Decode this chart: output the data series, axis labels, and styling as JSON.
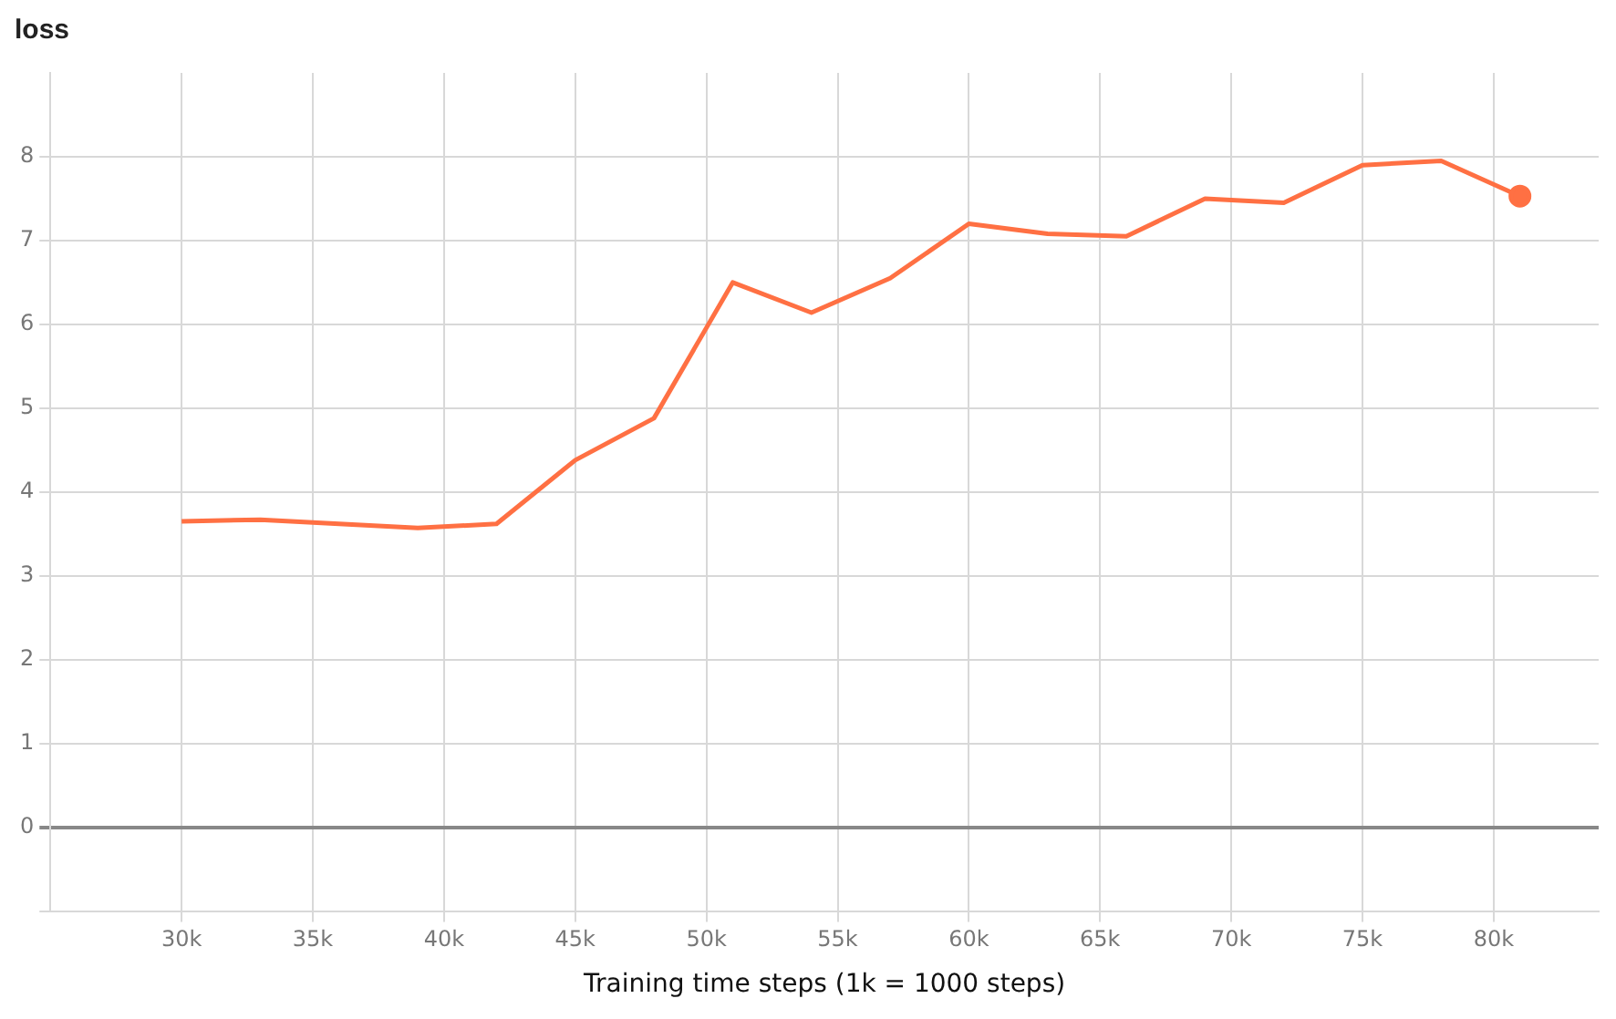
{
  "chart_data": {
    "type": "line",
    "title": "loss",
    "xlabel": "Training time steps (1k = 1000 steps)",
    "x": [
      30000,
      33000,
      36000,
      39000,
      42000,
      45000,
      48000,
      51000,
      54000,
      57000,
      60000,
      63000,
      66000,
      69000,
      72000,
      75000,
      78000,
      81000
    ],
    "series": [
      {
        "color": "#ff7043",
        "values": [
          3.65,
          3.67,
          3.62,
          3.57,
          3.62,
          4.38,
          4.88,
          6.5,
          6.14,
          6.55,
          7.2,
          7.08,
          7.05,
          7.5,
          7.45,
          7.9,
          7.95,
          7.53
        ]
      }
    ],
    "xlim": [
      25000,
      84000
    ],
    "xticks": [
      {
        "value": 30000,
        "label": "30k"
      },
      {
        "value": 35000,
        "label": "35k"
      },
      {
        "value": 40000,
        "label": "40k"
      },
      {
        "value": 45000,
        "label": "45k"
      },
      {
        "value": 50000,
        "label": "50k"
      },
      {
        "value": 55000,
        "label": "55k"
      },
      {
        "value": 60000,
        "label": "60k"
      },
      {
        "value": 65000,
        "label": "65k"
      },
      {
        "value": 70000,
        "label": "70k"
      },
      {
        "value": 75000,
        "label": "75k"
      },
      {
        "value": 80000,
        "label": "80k"
      }
    ],
    "ylim": [
      -1,
      9
    ],
    "yticks": [
      {
        "value": -1,
        "label": null
      },
      0,
      1,
      2,
      3,
      4,
      5,
      6,
      7,
      8
    ],
    "grid": true,
    "legend": false,
    "marker": "none",
    "line_style": "solid"
  }
}
